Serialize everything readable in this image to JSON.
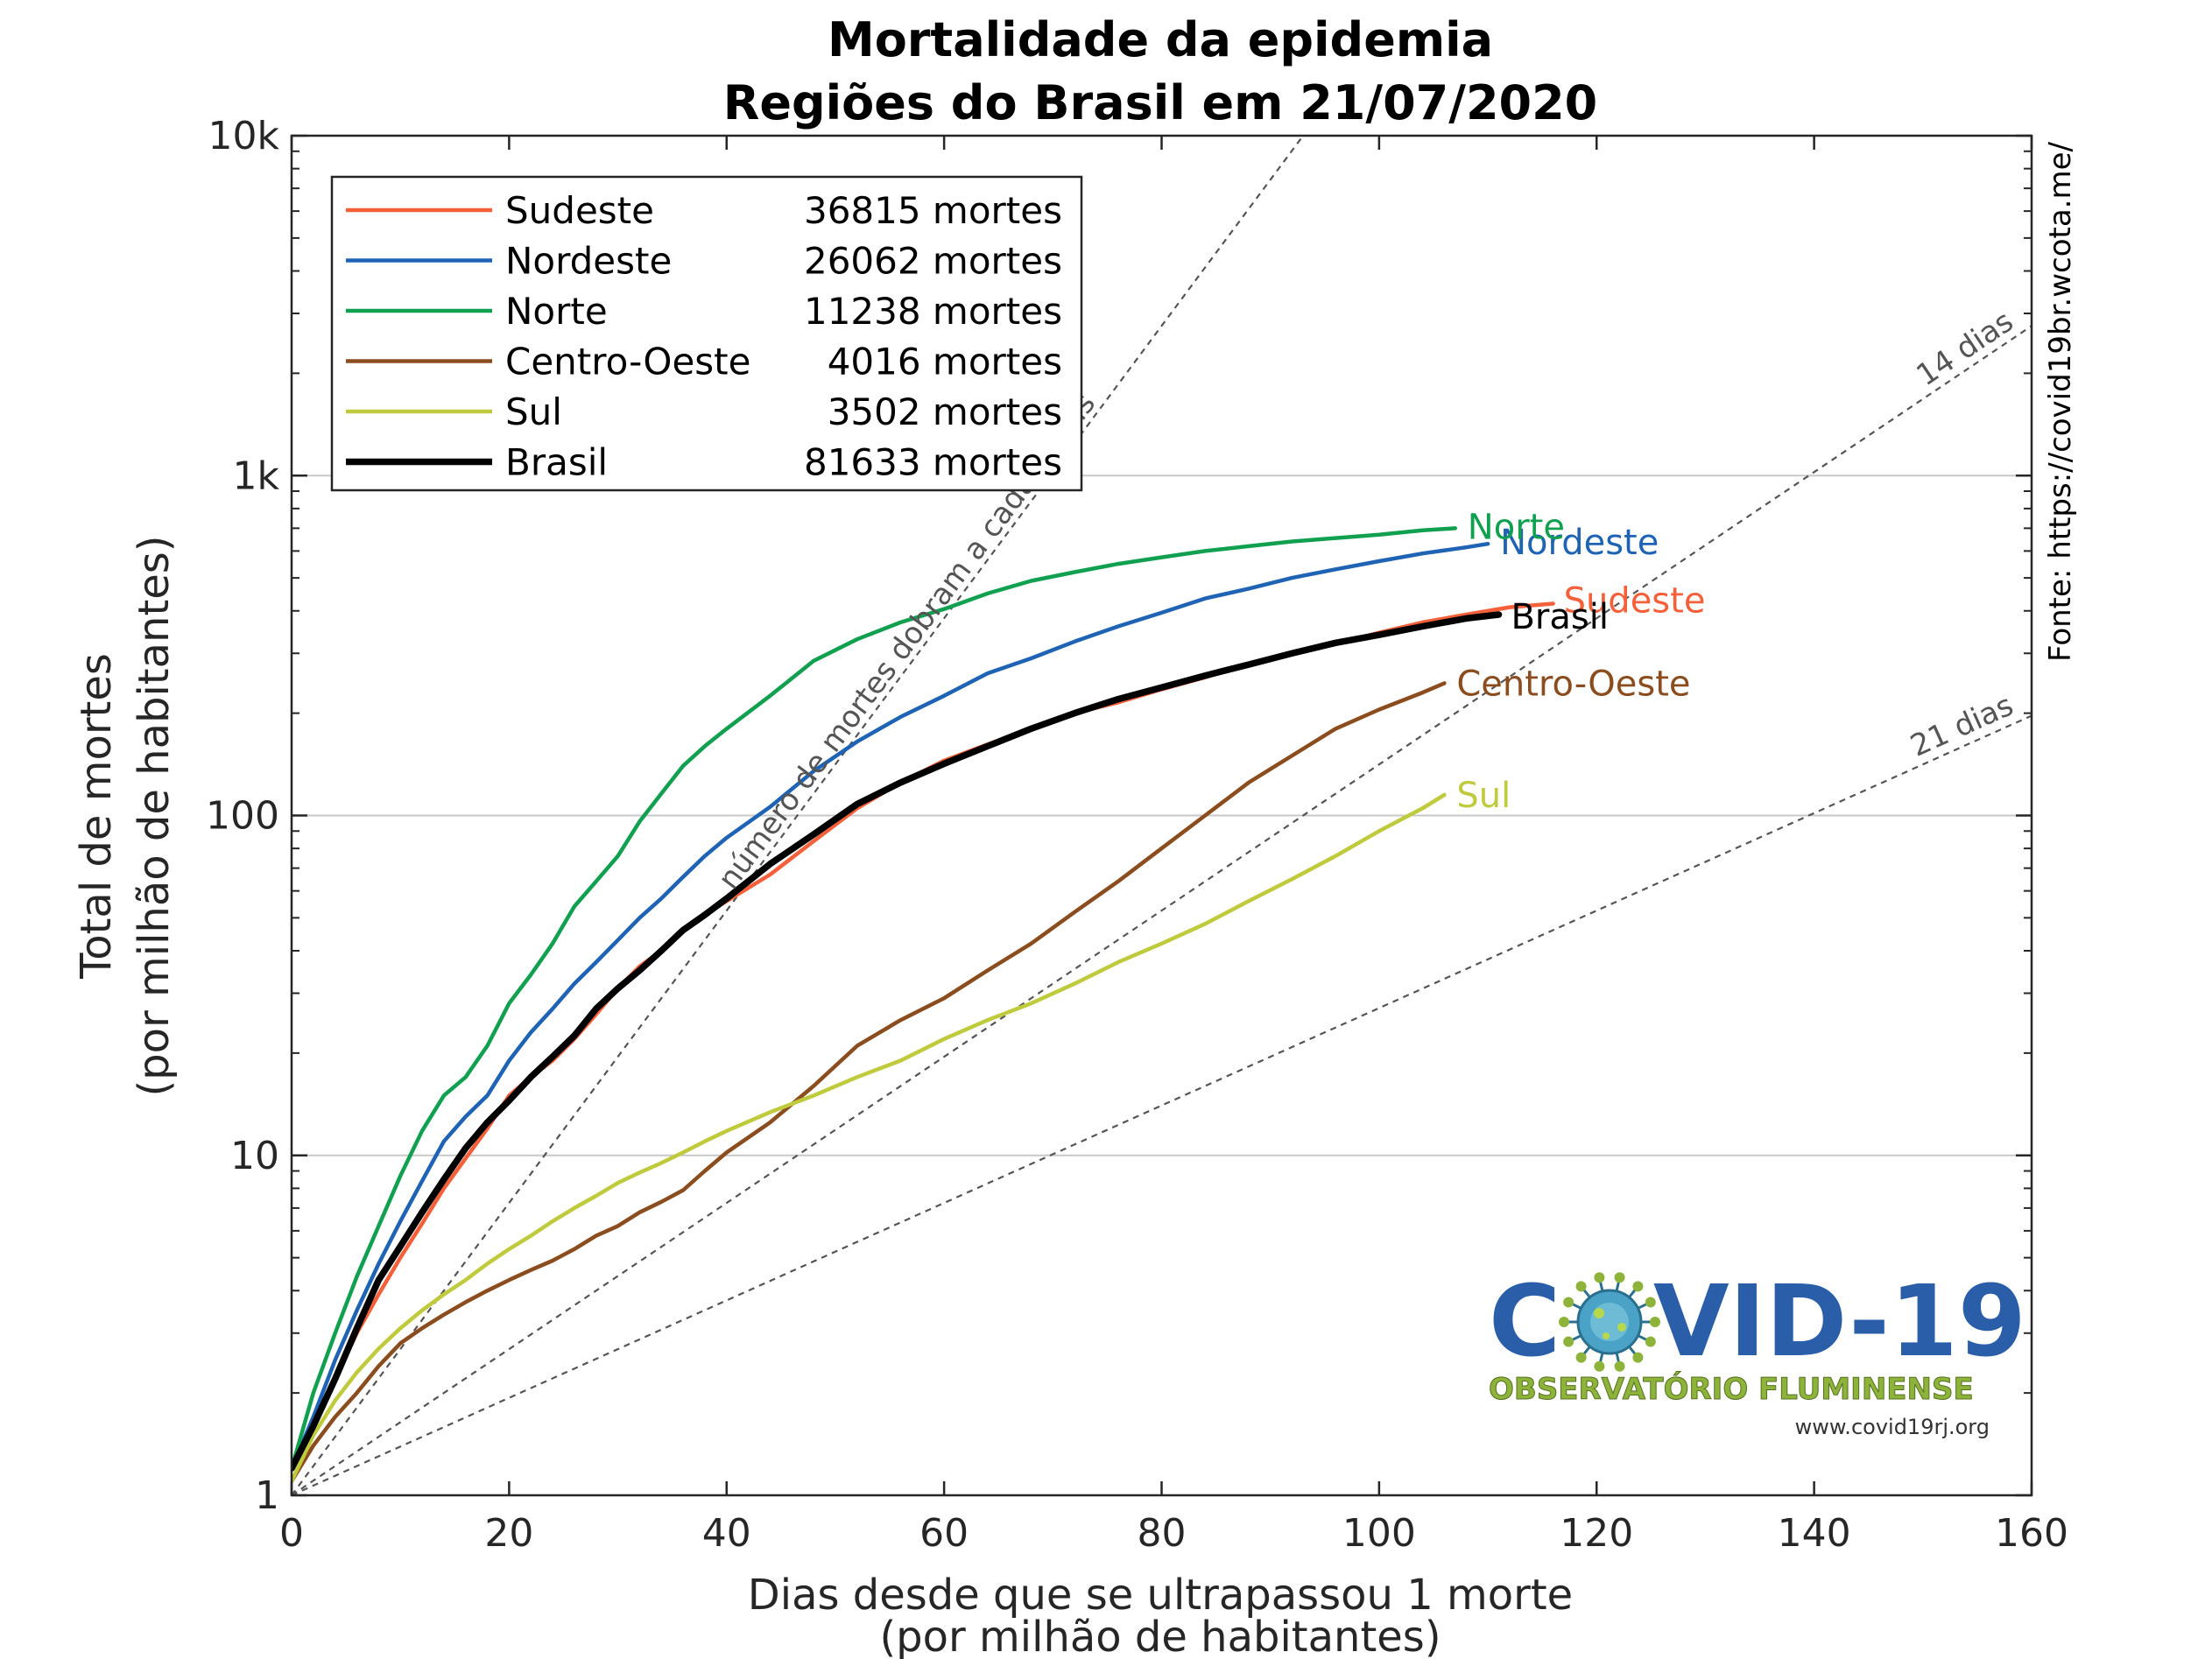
{
  "chart_data": {
    "type": "line",
    "title": [
      "Mortalidade da epidemia",
      "Regiões do Brasil em 21/07/2020"
    ],
    "xlabel": [
      "Dias desde que se ultrapassou 1 morte",
      "(por milhão de habitantes)"
    ],
    "ylabel": [
      "Total de mortes",
      "(por milhão de habitantes)"
    ],
    "xlim": [
      0,
      160
    ],
    "ylim": [
      1,
      10000
    ],
    "yscale": "log",
    "xticks": [
      0,
      20,
      40,
      60,
      80,
      100,
      120,
      140,
      160
    ],
    "xtick_labels": [
      "0",
      "20",
      "40",
      "60",
      "80",
      "100",
      "120",
      "140",
      "160"
    ],
    "yticks": [
      1,
      10,
      100,
      1000,
      10000
    ],
    "ytick_labels": [
      "1",
      "10",
      "100",
      "1k",
      "10k"
    ],
    "grid": "horizontal at decades",
    "legend_position": "top-left",
    "series": [
      {
        "name": "Sudeste",
        "deaths_label": "36815 mortes",
        "color": "#f4603a",
        "end_label": "Sudeste",
        "x": [
          0,
          2,
          4,
          6,
          8,
          10,
          12,
          14,
          16,
          18,
          20,
          22,
          24,
          26,
          28,
          30,
          32,
          34,
          36,
          38,
          40,
          44,
          48,
          52,
          56,
          60,
          64,
          68,
          72,
          76,
          80,
          84,
          88,
          92,
          96,
          100,
          104,
          108,
          112,
          116
        ],
        "y": [
          1.2,
          1.6,
          2.2,
          3.0,
          3.9,
          5.0,
          6.3,
          8.0,
          9.8,
          12,
          15,
          17,
          19,
          22,
          26,
          31,
          36,
          40,
          46,
          51,
          56,
          67,
          84,
          105,
          125,
          145,
          162,
          180,
          200,
          215,
          235,
          255,
          280,
          300,
          320,
          345,
          370,
          390,
          410,
          420
        ]
      },
      {
        "name": "Nordeste",
        "deaths_label": "26062 mortes",
        "color": "#1f63b5",
        "end_label": "Nordeste",
        "x": [
          0,
          2,
          4,
          6,
          8,
          10,
          12,
          14,
          16,
          18,
          20,
          22,
          24,
          26,
          28,
          30,
          32,
          34,
          36,
          38,
          40,
          44,
          48,
          52,
          56,
          60,
          64,
          68,
          72,
          76,
          80,
          84,
          88,
          92,
          96,
          100,
          104,
          108,
          110
        ],
        "y": [
          1.2,
          1.7,
          2.5,
          3.5,
          4.8,
          6.4,
          8.4,
          11,
          13,
          15,
          19,
          23,
          27,
          32,
          37,
          43,
          50,
          57,
          66,
          76,
          86,
          106,
          135,
          165,
          195,
          225,
          262,
          290,
          325,
          360,
          395,
          435,
          465,
          500,
          530,
          560,
          590,
          615,
          630
        ]
      },
      {
        "name": "Norte",
        "deaths_label": "11238 mortes",
        "color": "#10a050",
        "end_label": "Norte",
        "x": [
          0,
          2,
          4,
          6,
          8,
          10,
          12,
          14,
          16,
          18,
          20,
          22,
          24,
          26,
          28,
          30,
          32,
          34,
          36,
          38,
          40,
          44,
          48,
          52,
          56,
          60,
          64,
          68,
          72,
          76,
          80,
          84,
          88,
          92,
          96,
          100,
          104,
          107
        ],
        "y": [
          1.2,
          2.0,
          3.0,
          4.4,
          6.2,
          8.7,
          11.8,
          15,
          17,
          21,
          28,
          34,
          42,
          54,
          64,
          76,
          96,
          116,
          140,
          160,
          180,
          225,
          285,
          330,
          370,
          405,
          450,
          490,
          520,
          550,
          575,
          600,
          620,
          640,
          655,
          670,
          690,
          700
        ]
      },
      {
        "name": "Centro-Oeste",
        "deaths_label": "4016 mortes",
        "color": "#8b4c1e",
        "end_label": "Centro-Oeste",
        "x": [
          0,
          2,
          4,
          6,
          8,
          10,
          12,
          14,
          16,
          18,
          20,
          22,
          24,
          26,
          28,
          30,
          32,
          34,
          36,
          38,
          40,
          44,
          48,
          52,
          56,
          60,
          64,
          68,
          72,
          76,
          80,
          84,
          88,
          92,
          96,
          100,
          104,
          106
        ],
        "y": [
          1.1,
          1.4,
          1.7,
          2.0,
          2.4,
          2.8,
          3.1,
          3.4,
          3.7,
          4.0,
          4.3,
          4.6,
          4.9,
          5.3,
          5.8,
          6.2,
          6.8,
          7.3,
          7.9,
          9.0,
          10.2,
          12.5,
          16,
          21,
          25,
          29,
          35,
          42,
          52,
          64,
          80,
          100,
          125,
          150,
          180,
          205,
          230,
          245
        ]
      },
      {
        "name": "Sul",
        "deaths_label": "3502 mortes",
        "color": "#bfca3d",
        "end_label": "Sul",
        "x": [
          0,
          2,
          4,
          6,
          8,
          10,
          12,
          14,
          16,
          18,
          20,
          22,
          24,
          26,
          28,
          30,
          32,
          34,
          36,
          38,
          40,
          44,
          48,
          52,
          56,
          60,
          64,
          68,
          72,
          76,
          80,
          84,
          88,
          92,
          96,
          100,
          104,
          106
        ],
        "y": [
          1.1,
          1.5,
          1.9,
          2.3,
          2.7,
          3.1,
          3.5,
          3.9,
          4.3,
          4.8,
          5.3,
          5.8,
          6.4,
          7.0,
          7.6,
          8.3,
          8.9,
          9.5,
          10.2,
          11,
          11.8,
          13.4,
          15,
          17,
          19,
          22,
          25,
          28,
          32,
          37,
          42,
          48,
          56,
          65,
          76,
          90,
          105,
          115
        ]
      },
      {
        "name": "Brasil",
        "deaths_label": "81633 mortes",
        "color": "#000000",
        "end_label": "Brasil",
        "x": [
          0,
          2,
          4,
          6,
          8,
          10,
          12,
          14,
          16,
          18,
          20,
          22,
          24,
          26,
          28,
          30,
          32,
          34,
          36,
          38,
          40,
          44,
          48,
          52,
          56,
          60,
          64,
          68,
          72,
          76,
          80,
          84,
          88,
          92,
          96,
          100,
          104,
          108,
          111
        ],
        "y": [
          1.2,
          1.6,
          2.2,
          3.1,
          4.3,
          5.4,
          6.8,
          8.5,
          10.5,
          12.5,
          14.5,
          17,
          19.5,
          22.5,
          27,
          31,
          35,
          40,
          46,
          51,
          57,
          72,
          88,
          108,
          125,
          142,
          160,
          180,
          200,
          220,
          238,
          258,
          278,
          300,
          322,
          340,
          360,
          380,
          390
        ]
      }
    ],
    "reference_lines": [
      {
        "doubling_days": 7,
        "label": "número de mortes dobram a cada 7 dias"
      },
      {
        "doubling_days": 14,
        "label": "14 dias"
      },
      {
        "doubling_days": 21,
        "label": "21 dias"
      }
    ],
    "source": "Fonte: https://covid19br.wcota.me/"
  },
  "logo": {
    "main_left": "C",
    "main_right": "VID-19",
    "subtitle": "OBSERVATÓRIO FLUMINENSE",
    "url": "www.covid19rj.org",
    "color_blue": "#2b5ea8",
    "color_green": "#8db33a"
  }
}
